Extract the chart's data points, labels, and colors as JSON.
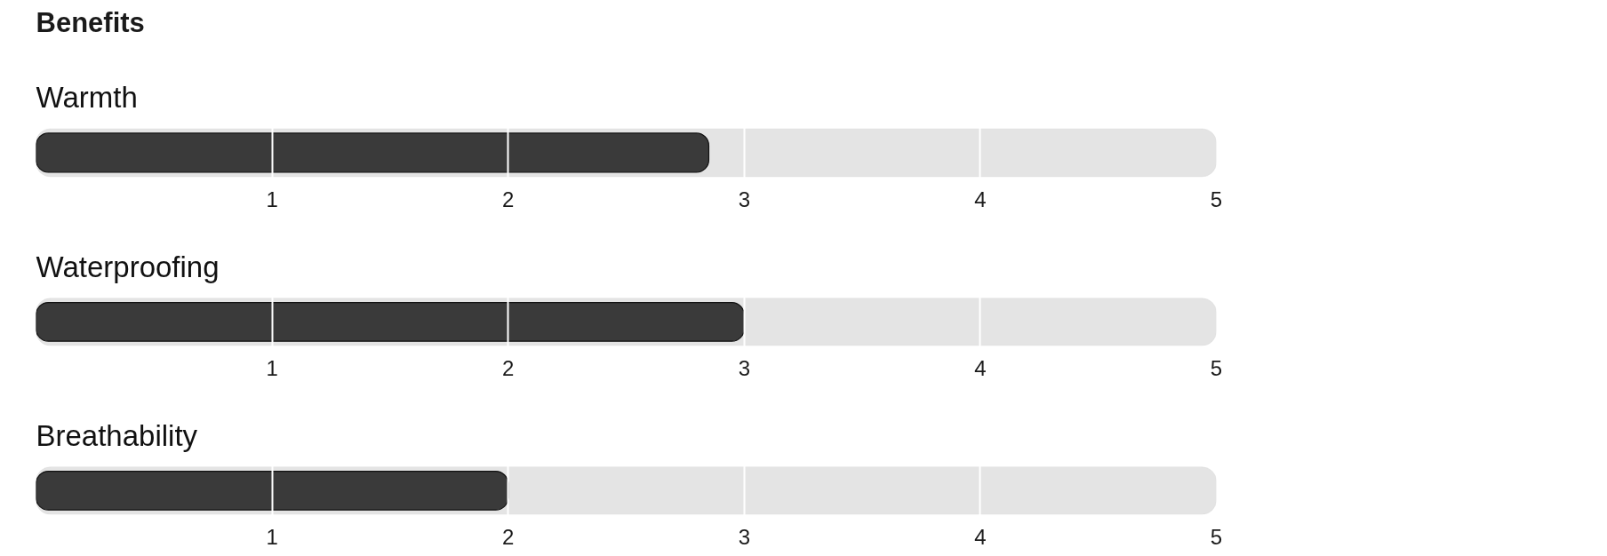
{
  "chart_data": [
    {
      "type": "bar",
      "orientation": "horizontal",
      "title": "Benefits",
      "categories": [
        "Warmth"
      ],
      "values": [
        2.85
      ],
      "color": "#3a3a3a",
      "bands": [
        {
          "axis": "x",
          "from": 0,
          "to": 5,
          "color": "#e4e4e4"
        }
      ],
      "xlim": [
        0,
        5
      ],
      "xticks": [
        1,
        2,
        3,
        4,
        5
      ],
      "grid": "x",
      "tick_labels": "x"
    },
    {
      "type": "bar",
      "orientation": "horizontal",
      "categories": [
        "Waterproofing"
      ],
      "values": [
        3
      ],
      "color": "#3a3a3a",
      "bands": [
        {
          "axis": "x",
          "from": 0,
          "to": 5,
          "color": "#e4e4e4"
        }
      ],
      "xlim": [
        0,
        5
      ],
      "xticks": [
        1,
        2,
        3,
        4,
        5
      ],
      "grid": "x",
      "tick_labels": "x"
    },
    {
      "type": "bar",
      "orientation": "horizontal",
      "categories": [
        "Breathability"
      ],
      "values": [
        2
      ],
      "color": "#3a3a3a",
      "bands": [
        {
          "axis": "x",
          "from": 0,
          "to": 5,
          "color": "#e4e4e4"
        }
      ],
      "xlim": [
        0,
        5
      ],
      "xticks": [
        1,
        2,
        3,
        4,
        5
      ],
      "grid": "x",
      "tick_labels": "x"
    }
  ]
}
